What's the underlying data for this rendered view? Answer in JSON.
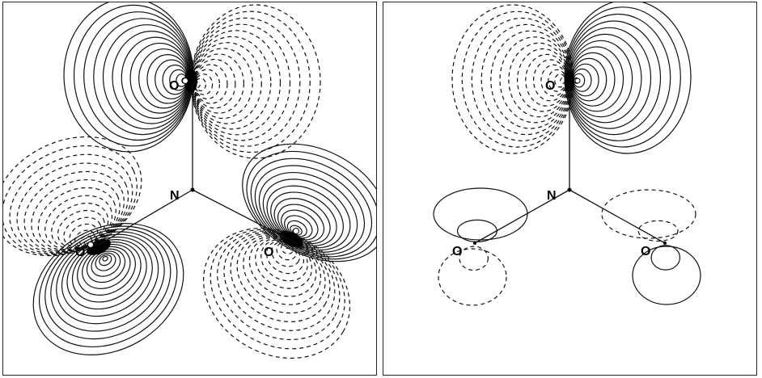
{
  "figure": {
    "left_panel": {
      "atom_labels": [
        "O",
        "O",
        "O",
        "N"
      ]
    },
    "right_panel": {
      "atom_labels": [
        "O",
        "O",
        "O",
        "N"
      ]
    },
    "line_styles": {
      "positive": "solid",
      "negative": "dashed",
      "stroke_color": "#111111"
    }
  }
}
